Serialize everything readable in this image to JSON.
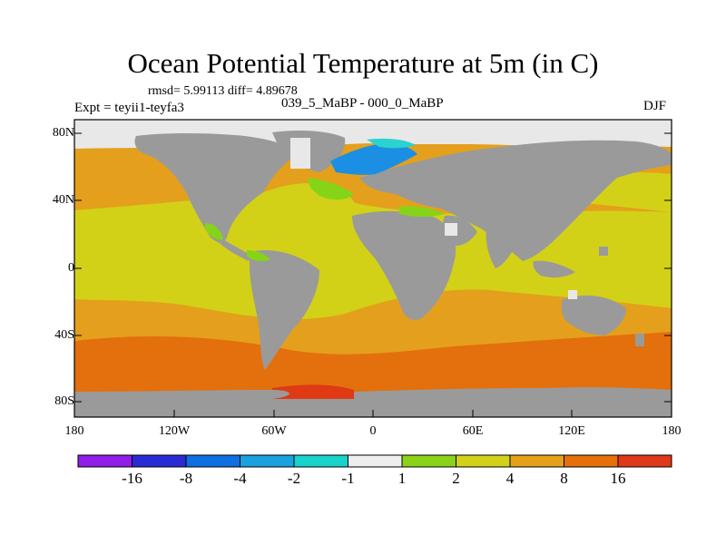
{
  "title": "Ocean Potential Temperature at 5m (in C)",
  "stats": "rmsd= 5.99113 diff= 4.89678",
  "experiment": "Expt = teyii1-teyfa3",
  "subtitle": "039_5_MaBP - 000_0_MaBP",
  "season": "DJF",
  "lat_labels": [
    "80N",
    "40N",
    "0",
    "40S",
    "80S"
  ],
  "lon_labels": [
    "180",
    "120W",
    "60W",
    "0",
    "60E",
    "120E",
    "180"
  ],
  "colorbar": {
    "labels": [
      "-16",
      "-8",
      "-4",
      "-2",
      "-1",
      "1",
      "2",
      "4",
      "8",
      "16"
    ],
    "colors": [
      "#8f1fe6",
      "#2b2bd6",
      "#0f6fe0",
      "#1aa2e0",
      "#18d2cc",
      "#eeeeee",
      "#8bd21a",
      "#d2d21a",
      "#e6a01a",
      "#e6700a",
      "#e0381a"
    ]
  },
  "colors": {
    "land": "#9a9a9a",
    "ice": "#e8e8e8",
    "ocean_orange": "#e4a01c",
    "ocean_yellow": "#d3d117",
    "ocean_deep": "#e3700c",
    "ocean_red": "#df3a14",
    "green": "#86d418",
    "blue": "#1b8fe3",
    "cyan": "#2ad2d0"
  }
}
